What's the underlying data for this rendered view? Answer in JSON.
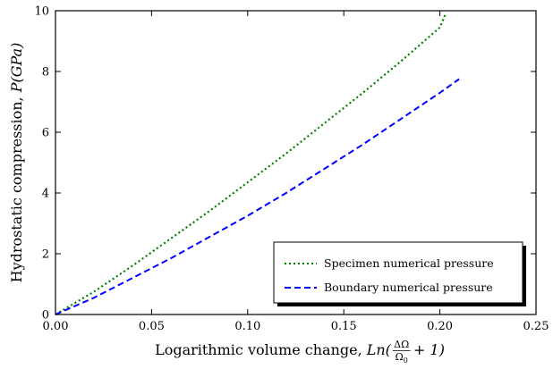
{
  "chart_data": {
    "type": "line",
    "title": "",
    "xlabel": "Logarithmic volume change, Ln(ΔΩ/Ω₀ + 1)",
    "ylabel": "Hydrostatic compression, P(GPa)",
    "xlabel_text": "Logarithmic volume change, ",
    "xlabel_math": {
      "prefix": "Ln(",
      "num": "ΔΩ",
      "den": "Ω",
      "den_sub": "0",
      "suffix": "+ 1)"
    },
    "ylabel_text": "Hydrostatic compression, ",
    "ylabel_math": "P(GPa)",
    "xlim": [
      0,
      0.25
    ],
    "ylim": [
      0,
      10
    ],
    "xticks": [
      0,
      0.05,
      0.1,
      0.15,
      0.2,
      0.25
    ],
    "xtick_labels": [
      "0.00",
      "0.05",
      "0.10",
      "0.15",
      "0.20",
      "0.25"
    ],
    "yticks": [
      0,
      2,
      4,
      6,
      8,
      10
    ],
    "ytick_labels": [
      "0",
      "2",
      "4",
      "6",
      "8",
      "10"
    ],
    "grid": false,
    "legend_position": "bottom-right",
    "series": [
      {
        "name": "Specimen numerical pressure",
        "color": "#008000",
        "style": "dotted",
        "x": [
          0,
          0.02,
          0.04,
          0.06,
          0.08,
          0.1,
          0.12,
          0.14,
          0.16,
          0.18,
          0.2,
          0.203
        ],
        "y": [
          0,
          0.75,
          1.6,
          2.5,
          3.4,
          4.35,
          5.3,
          6.3,
          7.3,
          8.35,
          9.45,
          9.9
        ]
      },
      {
        "name": "Boundary numerical pressure",
        "color": "#0000ff",
        "style": "dashed",
        "x": [
          0,
          0.02,
          0.04,
          0.06,
          0.08,
          0.1,
          0.12,
          0.14,
          0.16,
          0.18,
          0.2,
          0.21
        ],
        "y": [
          0,
          0.55,
          1.2,
          1.85,
          2.55,
          3.25,
          4.0,
          4.8,
          5.6,
          6.45,
          7.3,
          7.75
        ]
      }
    ]
  }
}
